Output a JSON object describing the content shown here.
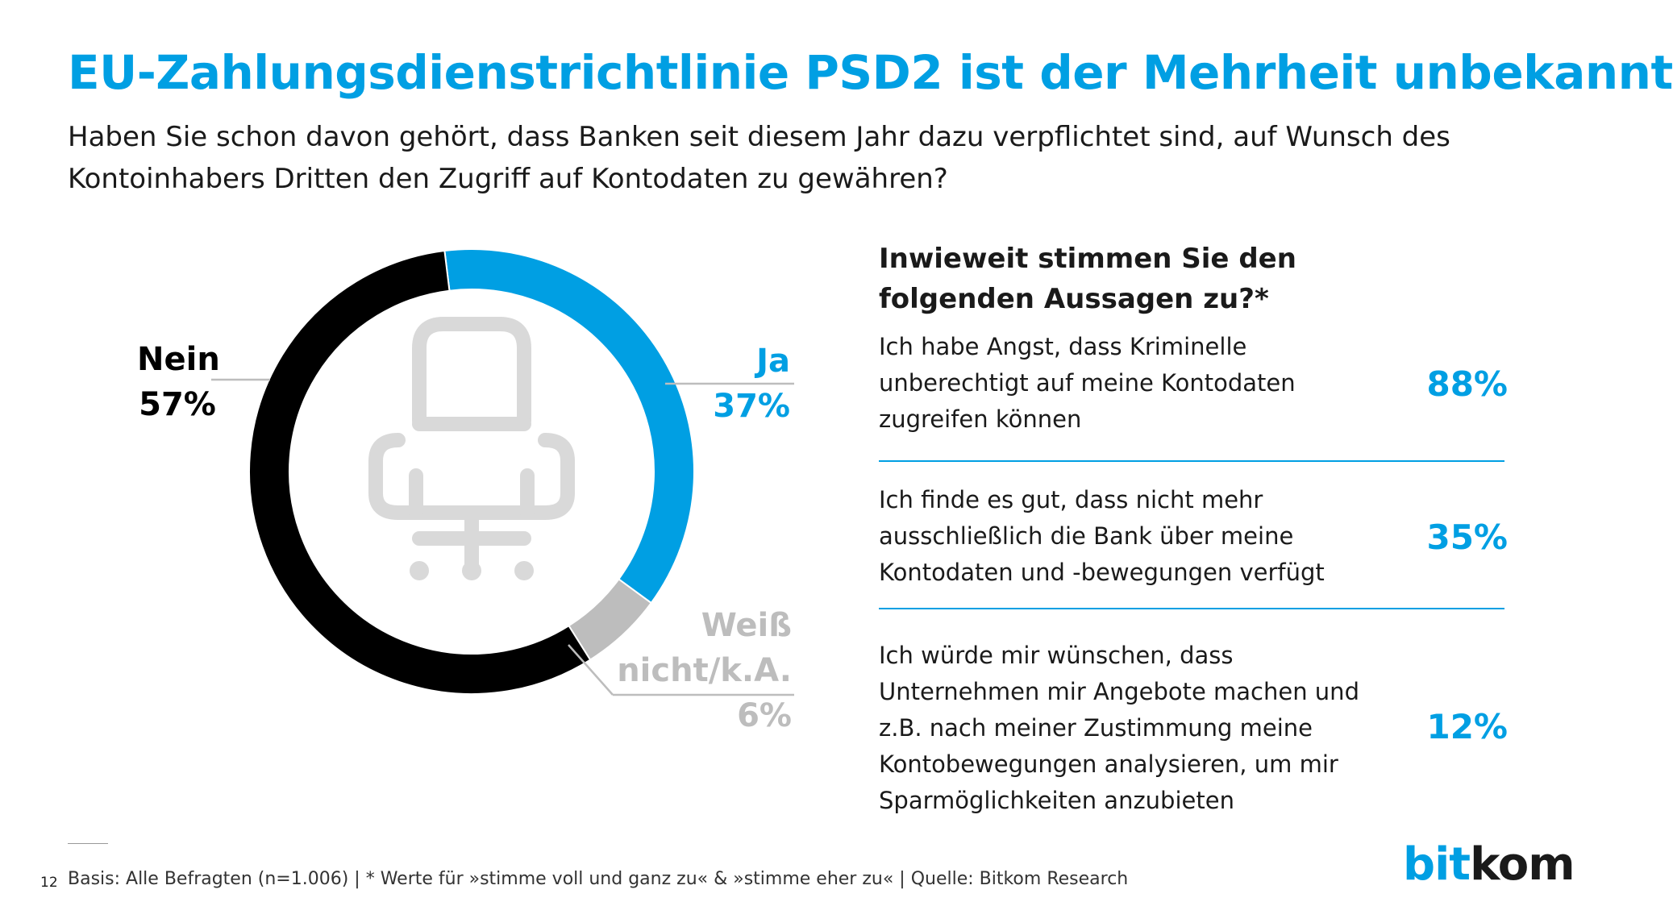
{
  "title": "EU-Zahlungsdienstrichtlinie PSD2 ist der Mehrheit unbekannt",
  "subtitle": "Haben Sie schon davon gehört, dass Banken seit diesem Jahr dazu verpflichtet sind, auf Wunsch des Kontoinhabers Dritten den Zugriff auf Kontodaten zu gewähren?",
  "chart_data": [
    {
      "type": "pie",
      "style": "donut",
      "center_icon": "office-chair-icon",
      "slices": [
        {
          "label_lines": [
            "Ja"
          ],
          "value": 37,
          "value_label": "37%",
          "color": "#009fe3"
        },
        {
          "label_lines": [
            "Weiß",
            "nicht/k.A."
          ],
          "value": 6,
          "value_label": "6%",
          "color": "#bdbdbd"
        },
        {
          "label_lines": [
            "Nein"
          ],
          "value": 57,
          "value_label": "57%",
          "color": "#000000"
        }
      ]
    },
    {
      "type": "table",
      "title": "Inwieweit stimmen Sie den folgenden Aussagen zu?*",
      "rows": [
        {
          "text": "Ich habe Angst, dass Kriminelle unberechtigt auf meine Kontodaten zugreifen können",
          "value": 88,
          "value_label": "88%"
        },
        {
          "text": "Ich finde es gut, dass nicht mehr ausschließlich die Bank über meine Kontodaten und -bewegungen verfügt",
          "value": 35,
          "value_label": "35%"
        },
        {
          "text": "Ich würde mir wünschen, dass Unternehmen mir Angebote machen und z.B. nach meiner Zustimmung meine Kontobewegungen analysieren, um mir Sparmöglichkeiten anzubieten",
          "value": 12,
          "value_label": "12%"
        }
      ]
    }
  ],
  "footer": {
    "page_number": "12",
    "text": "Basis: Alle Befragten (n=1.006) | * Werte für »stimme voll und ganz zu« & »stimme eher zu« | Quelle: Bitkom Research"
  },
  "logo": {
    "part1": "bit",
    "part2": "kom"
  }
}
